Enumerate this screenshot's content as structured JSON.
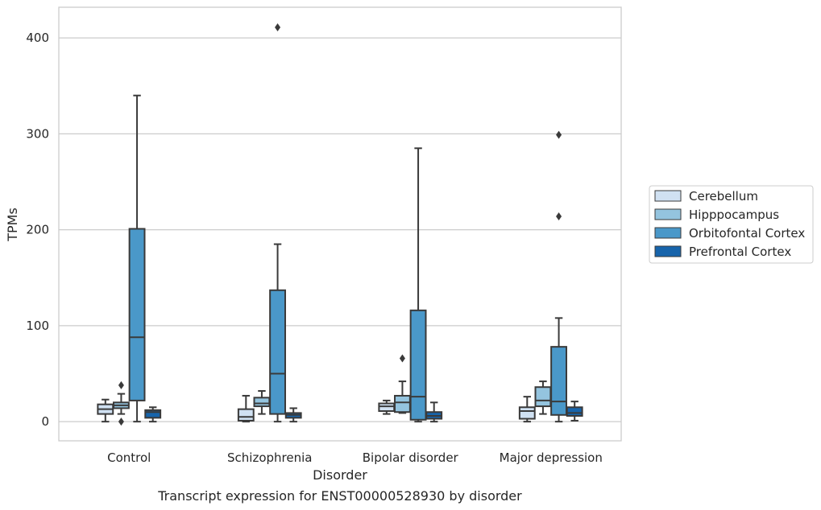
{
  "caption": "Transcript expression for ENST00000528930 by disorder",
  "chart_data": {
    "type": "boxplot",
    "xlabel": "Disorder",
    "ylabel": "TPMs",
    "ylim": [
      -20,
      432
    ],
    "yticks": [
      0,
      100,
      200,
      300,
      400
    ],
    "grid": true,
    "legend_position": "right",
    "categories": [
      "Control",
      "Schizophrenia",
      "Bipolar disorder",
      "Major depression"
    ],
    "series": [
      {
        "name": "Cerebellum",
        "color": "#d0e1f2",
        "boxes": [
          {
            "whislo": 0,
            "q1": 8,
            "med": 13,
            "q3": 18,
            "whishi": 23,
            "fliers": []
          },
          {
            "whislo": 0,
            "q1": 1,
            "med": 5,
            "q3": 13,
            "whishi": 27,
            "fliers": []
          },
          {
            "whislo": 8,
            "q1": 11,
            "med": 16,
            "q3": 19,
            "whishi": 22,
            "fliers": []
          },
          {
            "whislo": 0,
            "q1": 3,
            "med": 11,
            "q3": 15,
            "whishi": 26,
            "fliers": []
          }
        ]
      },
      {
        "name": "Hipppocampus",
        "color": "#94c4df",
        "boxes": [
          {
            "whislo": 8,
            "q1": 14,
            "med": 17,
            "q3": 20,
            "whishi": 29,
            "fliers": [
              38,
              0
            ]
          },
          {
            "whislo": 8,
            "q1": 16,
            "med": 19,
            "q3": 25,
            "whishi": 32,
            "fliers": []
          },
          {
            "whislo": 9,
            "q1": 10,
            "med": 20,
            "q3": 27,
            "whishi": 42,
            "fliers": [
              66
            ]
          },
          {
            "whislo": 8,
            "q1": 16,
            "med": 22,
            "q3": 36,
            "whishi": 42,
            "fliers": []
          }
        ]
      },
      {
        "name": "Orbitofontal Cortex",
        "color": "#4a98c9",
        "boxes": [
          {
            "whislo": 0,
            "q1": 22,
            "med": 88,
            "q3": 201,
            "whishi": 340,
            "fliers": []
          },
          {
            "whislo": 0,
            "q1": 8,
            "med": 50,
            "q3": 137,
            "whishi": 185,
            "fliers": [
              411
            ]
          },
          {
            "whislo": 0,
            "q1": 2,
            "med": 26,
            "q3": 116,
            "whishi": 285,
            "fliers": []
          },
          {
            "whislo": 0,
            "q1": 7,
            "med": 21,
            "q3": 78,
            "whishi": 108,
            "fliers": [
              214,
              299
            ]
          }
        ]
      },
      {
        "name": "Prefrontal Cortex",
        "color": "#1764ab",
        "boxes": [
          {
            "whislo": 0,
            "q1": 4,
            "med": 10,
            "q3": 12,
            "whishi": 15,
            "fliers": []
          },
          {
            "whislo": 0,
            "q1": 4,
            "med": 7,
            "q3": 9,
            "whishi": 14,
            "fliers": []
          },
          {
            "whislo": 0,
            "q1": 3,
            "med": 6,
            "q3": 10,
            "whishi": 20,
            "fliers": []
          },
          {
            "whislo": 1,
            "q1": 6,
            "med": 9,
            "q3": 15,
            "whishi": 21,
            "fliers": []
          }
        ]
      }
    ]
  }
}
